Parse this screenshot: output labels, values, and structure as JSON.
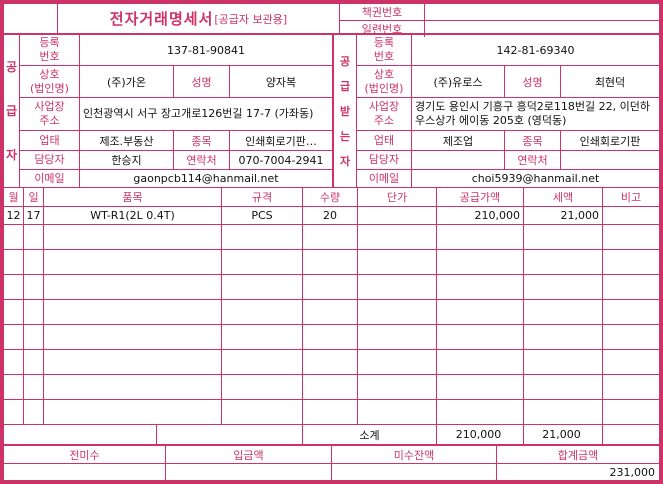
{
  "colors": {
    "accent": "#cc3366",
    "text": "#111111"
  },
  "header": {
    "title": "전자거래명세서",
    "title_suffix": "[공급자 보관용]",
    "book_no_label": "책권번호",
    "book_no_value": "",
    "serial_no_label": "일련번호",
    "serial_no_value": ""
  },
  "supplier": {
    "party_label": "공\n급\n자",
    "reg_label": "등록\n번호",
    "reg_value": "137-81-90841",
    "name_label": "상호\n(법인명)",
    "name_value": "(주)가온",
    "ceo_label": "성명",
    "ceo_value": "양자복",
    "addr_label": "사업장\n주소",
    "addr_value": "인천광역시 서구 장고개로126번길 17-7 (가좌동)",
    "biztype_label": "업태",
    "biztype_value": "제조.부동산",
    "item_label": "종목",
    "item_value": "인쇄회로기판…",
    "contact_label": "담당자",
    "contact_value": "한승지",
    "phone_label": "연락처",
    "phone_value": "070-7004-2941",
    "email_label": "이메일",
    "email_value": "gaonpcb114@hanmail.net"
  },
  "buyer": {
    "party_label": "공\n급\n받\n는\n자",
    "reg_label": "등록\n번호",
    "reg_value": "142-81-69340",
    "name_label": "상호\n(법인명)",
    "name_value": "(주)유로스",
    "ceo_label": "성명",
    "ceo_value": "최현덕",
    "addr_label": "사업장\n주소",
    "addr_value": "경기도 용인시 기흥구 흥덕2로118번길 22, 이던하우스상가 에이동 205호 (영덕동)",
    "biztype_label": "업태",
    "biztype_value": "제조업",
    "item_label": "종목",
    "item_value": "인쇄회로기판",
    "contact_label": "담당자",
    "contact_value": "",
    "phone_label": "연락처",
    "phone_value": "",
    "email_label": "이메일",
    "email_value": "choi5939@hanmail.net"
  },
  "table": {
    "headers": [
      "월",
      "일",
      "품목",
      "규격",
      "수량",
      "단가",
      "공급가액",
      "세액",
      "비고"
    ],
    "rows": [
      {
        "month": "12",
        "day": "17",
        "item": "WT-R1(2L 0.4T)",
        "spec": "PCS",
        "qty": "20",
        "unit_price": "",
        "supply_value": "210,000",
        "tax": "21,000",
        "note": ""
      }
    ],
    "empty_row_count": 8,
    "columns_count": 9,
    "subtotal_label": "소계",
    "subtotal_supply_value": "210,000",
    "subtotal_tax": "21,000"
  },
  "footer": {
    "prev_balance_label": "전미수",
    "prev_balance_value": "",
    "deposit_label": "입금액",
    "deposit_value": "",
    "outstanding_label": "미수잔액",
    "outstanding_value": "",
    "total_label": "합계금액",
    "total_value": "231,000"
  }
}
